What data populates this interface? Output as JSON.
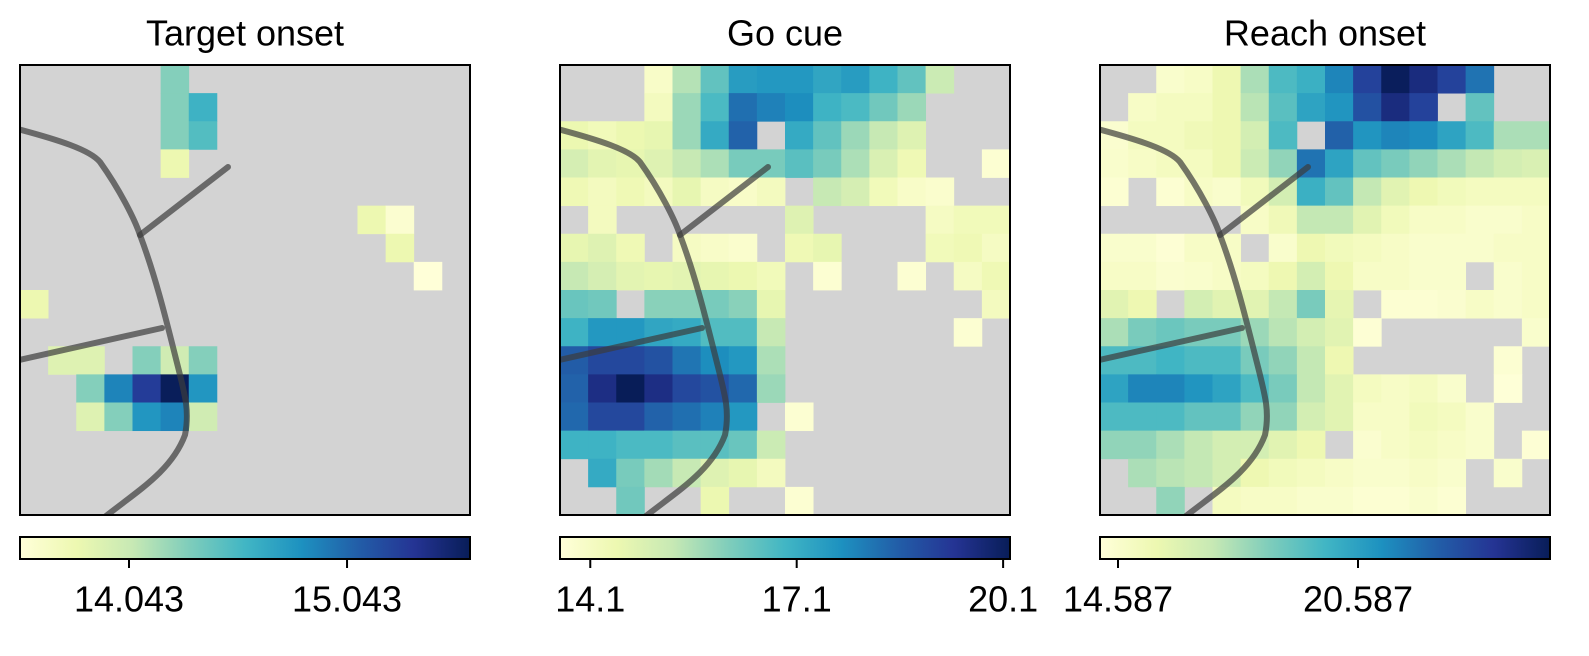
{
  "chart_data": [
    {
      "type": "heatmap",
      "title": "Target onset",
      "colormap": "YlGnBu",
      "nan_color": "#d3d3d3",
      "zlim": [
        13.543,
        15.607
      ],
      "zticks": [
        14.043,
        15.043
      ],
      "z": [
        [
          null,
          null,
          null,
          null,
          null,
          14.3,
          null,
          null,
          null,
          null,
          null,
          null,
          null,
          null,
          null,
          null
        ],
        [
          null,
          null,
          null,
          null,
          null,
          14.3,
          14.6,
          null,
          null,
          null,
          null,
          null,
          null,
          null,
          null,
          null
        ],
        [
          null,
          null,
          null,
          null,
          null,
          14.3,
          14.5,
          null,
          null,
          null,
          null,
          null,
          null,
          null,
          null,
          null
        ],
        [
          null,
          null,
          null,
          null,
          null,
          13.8,
          null,
          null,
          null,
          null,
          null,
          null,
          null,
          null,
          null,
          null
        ],
        [
          null,
          null,
          null,
          null,
          null,
          null,
          null,
          null,
          null,
          null,
          null,
          null,
          null,
          null,
          null,
          null
        ],
        [
          null,
          null,
          null,
          null,
          null,
          null,
          null,
          null,
          null,
          null,
          null,
          null,
          13.8,
          13.6,
          null,
          null
        ],
        [
          null,
          null,
          null,
          null,
          null,
          null,
          null,
          null,
          null,
          null,
          null,
          null,
          null,
          13.8,
          null,
          null
        ],
        [
          null,
          null,
          null,
          null,
          null,
          null,
          null,
          null,
          null,
          null,
          null,
          null,
          null,
          null,
          13.55,
          null
        ],
        [
          13.8,
          null,
          null,
          null,
          null,
          null,
          null,
          null,
          null,
          null,
          null,
          null,
          null,
          null,
          null,
          null
        ],
        [
          null,
          null,
          null,
          null,
          null,
          null,
          null,
          null,
          null,
          null,
          null,
          null,
          null,
          null,
          null,
          null
        ],
        [
          null,
          13.9,
          13.9,
          null,
          14.3,
          14.0,
          14.3,
          null,
          null,
          null,
          null,
          null,
          null,
          null,
          null,
          null
        ],
        [
          null,
          null,
          14.3,
          14.9,
          15.3,
          15.6,
          14.8,
          null,
          null,
          null,
          null,
          null,
          null,
          null,
          null,
          null
        ],
        [
          null,
          null,
          13.9,
          14.3,
          14.8,
          14.9,
          14.0,
          null,
          null,
          null,
          null,
          null,
          null,
          null,
          null,
          null
        ],
        [
          null,
          null,
          null,
          null,
          null,
          null,
          null,
          null,
          null,
          null,
          null,
          null,
          null,
          null,
          null,
          null
        ],
        [
          null,
          null,
          null,
          null,
          null,
          null,
          null,
          null,
          null,
          null,
          null,
          null,
          null,
          null,
          null,
          null
        ],
        [
          null,
          null,
          null,
          null,
          null,
          null,
          null,
          null,
          null,
          null,
          null,
          null,
          null,
          null,
          null,
          null
        ]
      ]
    },
    {
      "type": "heatmap",
      "title": "Go cue",
      "colormap": "YlGnBu",
      "nan_color": "#d3d3d3",
      "zlim": [
        13.66,
        20.2
      ],
      "zticks": [
        14.1,
        17.1,
        20.1
      ],
      "z": [
        [
          null,
          null,
          null,
          14.0,
          15.5,
          16.5,
          17.5,
          17.6,
          17.6,
          17.3,
          17.5,
          17.0,
          16.5,
          15.2,
          null,
          null
        ],
        [
          null,
          null,
          null,
          14.2,
          15.8,
          16.8,
          18.3,
          18.0,
          17.8,
          17.0,
          16.8,
          16.3,
          15.8,
          null,
          null,
          null
        ],
        [
          14.5,
          14.3,
          14.5,
          14.6,
          15.8,
          17.2,
          18.5,
          null,
          17.2,
          16.5,
          15.8,
          15.3,
          14.8,
          null,
          null,
          null
        ],
        [
          15.0,
          14.7,
          14.6,
          14.8,
          15.3,
          15.6,
          16.2,
          16.2,
          16.6,
          16.2,
          15.6,
          14.9,
          14.4,
          null,
          null,
          13.8
        ],
        [
          14.4,
          14.2,
          14.4,
          14.2,
          14.6,
          14.1,
          14.0,
          14.2,
          null,
          15.3,
          15.0,
          14.3,
          14.0,
          13.9,
          null,
          null
        ],
        [
          null,
          14.2,
          null,
          null,
          null,
          null,
          null,
          null,
          14.8,
          null,
          null,
          null,
          null,
          14.1,
          14.3,
          14.3
        ],
        [
          14.6,
          14.8,
          14.4,
          null,
          14.1,
          14.0,
          13.9,
          null,
          14.4,
          14.6,
          null,
          null,
          null,
          14.3,
          14.4,
          14.1
        ],
        [
          15.3,
          15.0,
          14.7,
          14.6,
          14.7,
          14.6,
          14.5,
          14.3,
          null,
          13.8,
          null,
          null,
          13.8,
          null,
          14.1,
          14.4
        ],
        [
          16.4,
          16.3,
          null,
          16.0,
          16.0,
          16.2,
          16.0,
          14.6,
          null,
          null,
          null,
          null,
          null,
          null,
          null,
          14.2
        ],
        [
          17.0,
          17.6,
          17.6,
          17.3,
          17.2,
          16.7,
          16.7,
          15.3,
          null,
          null,
          null,
          null,
          null,
          null,
          13.8,
          null
        ],
        [
          18.6,
          19.0,
          19.0,
          18.8,
          18.2,
          17.8,
          17.6,
          15.6,
          null,
          null,
          null,
          null,
          null,
          null,
          null,
          null
        ],
        [
          18.5,
          19.6,
          20.2,
          19.6,
          19.0,
          18.8,
          18.4,
          15.8,
          null,
          null,
          null,
          null,
          null,
          null,
          null,
          null
        ],
        [
          18.4,
          19.0,
          19.0,
          18.5,
          18.3,
          18.0,
          17.6,
          null,
          13.8,
          null,
          null,
          null,
          null,
          null,
          null,
          null
        ],
        [
          17.0,
          17.0,
          16.8,
          16.8,
          16.6,
          16.6,
          16.4,
          15.2,
          null,
          null,
          null,
          null,
          null,
          null,
          null,
          null
        ],
        [
          null,
          17.2,
          16.2,
          15.7,
          15.3,
          14.8,
          14.6,
          14.2,
          null,
          null,
          null,
          null,
          null,
          null,
          null,
          null
        ],
        [
          null,
          null,
          16.3,
          null,
          null,
          14.5,
          null,
          null,
          13.8,
          null,
          null,
          null,
          null,
          null,
          null,
          null
        ]
      ]
    },
    {
      "type": "heatmap",
      "title": "Reach onset",
      "colormap": "YlGnBu",
      "nan_color": "#d3d3d3",
      "zlim": [
        14.137,
        25.387
      ],
      "zticks": [
        14.587,
        20.587
      ],
      "z": [
        [
          null,
          null,
          14.6,
          14.8,
          15.5,
          17.5,
          19.5,
          20.0,
          21.5,
          23.5,
          25.3,
          24.5,
          23.5,
          22.0,
          null,
          null
        ],
        [
          null,
          14.8,
          15.0,
          15.0,
          15.5,
          17.2,
          19.2,
          20.5,
          21.0,
          23.0,
          24.5,
          23.5,
          null,
          19.0,
          null,
          null
        ],
        [
          14.5,
          15.0,
          15.0,
          15.3,
          15.5,
          16.5,
          19.5,
          null,
          22.5,
          21.0,
          21.5,
          21.3,
          20.5,
          19.5,
          17.5,
          17.5
        ],
        [
          14.6,
          14.8,
          15.0,
          15.0,
          15.5,
          16.8,
          18.0,
          22.0,
          20.5,
          19.0,
          18.5,
          18.0,
          17.5,
          17.0,
          16.5,
          16.3
        ],
        [
          14.4,
          null,
          14.4,
          14.8,
          14.6,
          15.2,
          16.5,
          20.0,
          19.0,
          17.0,
          16.0,
          15.5,
          15.2,
          15.0,
          15.0,
          15.0
        ],
        [
          null,
          null,
          null,
          null,
          null,
          14.8,
          15.3,
          17.0,
          17.0,
          16.0,
          15.2,
          14.8,
          14.8,
          14.6,
          14.6,
          14.8
        ],
        [
          14.6,
          14.6,
          14.3,
          14.8,
          14.8,
          null,
          14.6,
          15.5,
          15.2,
          15.0,
          14.8,
          14.6,
          14.6,
          14.6,
          14.8,
          14.8
        ],
        [
          14.8,
          14.8,
          14.5,
          14.6,
          14.8,
          15.0,
          15.5,
          16.5,
          15.5,
          14.8,
          14.8,
          14.6,
          14.6,
          null,
          14.6,
          14.8
        ],
        [
          16.0,
          15.5,
          null,
          16.5,
          16.0,
          16.0,
          17.0,
          18.5,
          15.8,
          null,
          14.4,
          14.4,
          14.5,
          14.8,
          14.6,
          14.8
        ],
        [
          17.5,
          18.5,
          18.8,
          18.5,
          18.5,
          17.8,
          17.2,
          16.5,
          16.0,
          14.3,
          null,
          null,
          null,
          null,
          null,
          14.6
        ],
        [
          19.5,
          19.5,
          19.8,
          19.5,
          19.5,
          18.5,
          18.0,
          17.0,
          15.5,
          null,
          null,
          null,
          null,
          null,
          14.4,
          null
        ],
        [
          20.5,
          21.5,
          21.5,
          21.0,
          20.5,
          19.5,
          18.5,
          17.0,
          16.0,
          15.0,
          14.8,
          15.0,
          14.6,
          null,
          14.2,
          null
        ],
        [
          19.5,
          19.5,
          19.5,
          19.0,
          19.0,
          18.0,
          18.0,
          16.5,
          16.0,
          14.8,
          14.8,
          15.2,
          15.0,
          14.6,
          null,
          null
        ],
        [
          18.0,
          18.0,
          17.5,
          17.0,
          16.5,
          16.5,
          16.0,
          15.5,
          null,
          14.5,
          14.8,
          15.0,
          14.8,
          14.6,
          null,
          14.3
        ],
        [
          null,
          17.5,
          17.2,
          17.0,
          16.5,
          15.5,
          15.2,
          15.0,
          14.8,
          14.6,
          14.6,
          14.8,
          14.6,
          null,
          14.6,
          null
        ],
        [
          null,
          null,
          18.0,
          null,
          15.0,
          14.8,
          14.8,
          14.6,
          14.6,
          14.4,
          14.4,
          14.6,
          14.4,
          null,
          null,
          null
        ]
      ]
    }
  ]
}
